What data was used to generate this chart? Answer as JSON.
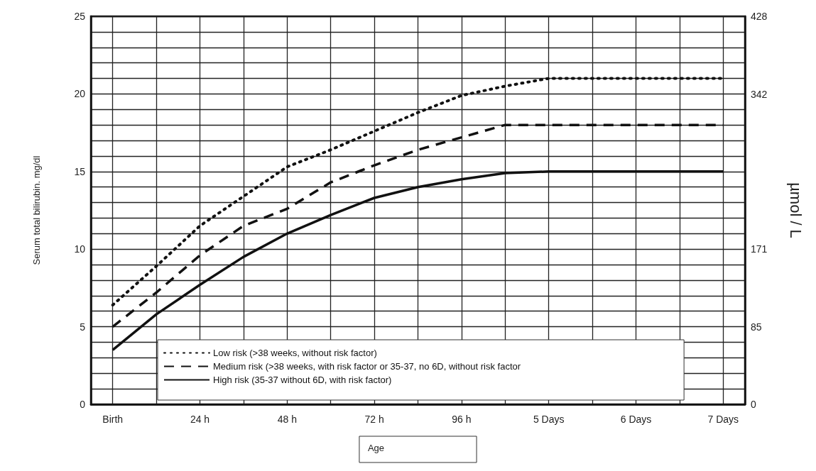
{
  "chart_data": {
    "type": "line",
    "xlabel": "Age",
    "ylabel": "Serum total bilirubin. mg/dl",
    "y2label": "µmol / L",
    "categories": [
      "Birth",
      null,
      "24 h",
      null,
      "48 h",
      null,
      "72 h",
      null,
      "96 h",
      null,
      "5 Days",
      null,
      "6 Days",
      null,
      "7 Days"
    ],
    "ylim": [
      0,
      25
    ],
    "yticks": [
      0,
      {
        "value": 1,
        "label": null
      },
      {
        "value": 2,
        "label": null
      },
      {
        "value": 3,
        "label": null
      },
      {
        "value": 4,
        "label": null
      },
      5,
      {
        "value": 6,
        "label": null
      },
      {
        "value": 7,
        "label": null
      },
      {
        "value": 8,
        "label": null
      },
      {
        "value": 9,
        "label": null
      },
      10,
      {
        "value": 11,
        "label": null
      },
      {
        "value": 12,
        "label": null
      },
      {
        "value": 13,
        "label": null
      },
      {
        "value": 14,
        "label": null
      },
      15,
      {
        "value": 16,
        "label": null
      },
      {
        "value": 17,
        "label": null
      },
      {
        "value": 18,
        "label": null
      },
      {
        "value": 19,
        "label": null
      },
      20,
      {
        "value": 21,
        "label": null
      },
      {
        "value": 22,
        "label": null
      },
      {
        "value": 23,
        "label": null
      },
      {
        "value": 24,
        "label": null
      },
      25
    ],
    "y2lim": [
      0,
      428
    ],
    "y2ticks": [
      0,
      85,
      171,
      342,
      428
    ],
    "grid": true,
    "legend": "bottom",
    "marker": "none",
    "series": [
      {
        "name": "Low risk (>38 weeks, without risk factor)",
        "color": "#111111",
        "line_style": "dotted",
        "values": [
          6.4,
          8.9,
          11.5,
          13.4,
          15.3,
          16.4,
          17.6,
          18.8,
          19.9,
          20.5,
          21,
          21,
          21,
          21,
          21
        ]
      },
      {
        "name": "Medium risk (>38 weeks, with risk factor or 35-37, no 6D, without risk factor",
        "color": "#111111",
        "line_style": "dashed",
        "values": [
          5,
          7.2,
          9.6,
          11.5,
          12.6,
          14.3,
          15.4,
          16.4,
          17.2,
          18,
          18,
          18,
          18,
          18,
          18
        ]
      },
      {
        "name": "High risk (35-37 without 6D, with risk factor)",
        "color": "#111111",
        "line_style": "solid",
        "values": [
          3.5,
          5.8,
          7.7,
          9.5,
          11,
          12.2,
          13.3,
          14,
          14.5,
          14.9,
          15,
          15,
          15,
          15,
          15
        ]
      }
    ]
  }
}
